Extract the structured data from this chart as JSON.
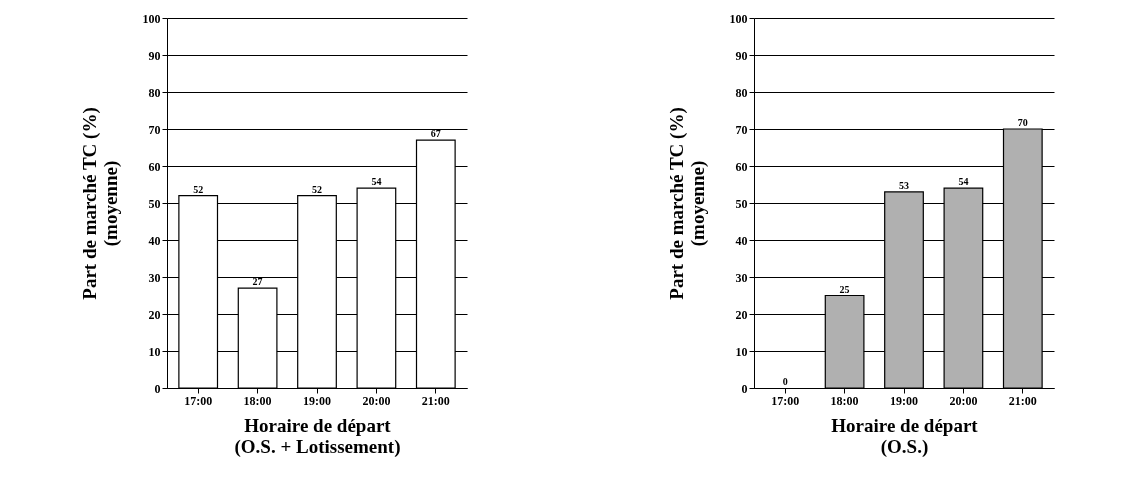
{
  "chart_data": [
    {
      "type": "bar",
      "categories": [
        "17:00",
        "18:00",
        "19:00",
        "20:00",
        "21:00"
      ],
      "values": [
        52,
        27,
        52,
        54,
        67
      ],
      "color": "#ffffff",
      "ylim": [
        0,
        100
      ],
      "yticks": [
        0,
        10,
        20,
        30,
        40,
        50,
        60,
        70,
        80,
        90,
        100
      ],
      "grid": "y",
      "data_labels": true,
      "ylabel": "Part de marché TC (%)\n(moyenne)",
      "xlabel": "Horaire de départ\n(O.S. + Lotissement)"
    },
    {
      "type": "bar",
      "categories": [
        "17:00",
        "18:00",
        "19:00",
        "20:00",
        "21:00"
      ],
      "values": [
        0,
        25,
        53,
        54,
        70
      ],
      "color": "#b0b0b0",
      "ylim": [
        0,
        100
      ],
      "yticks": [
        0,
        10,
        20,
        30,
        40,
        50,
        60,
        70,
        80,
        90,
        100
      ],
      "grid": "y",
      "data_labels": true,
      "ylabel": "Part de marché TC (%)\n(moyenne)",
      "xlabel": "Horaire de départ\n(O.S.)"
    }
  ]
}
